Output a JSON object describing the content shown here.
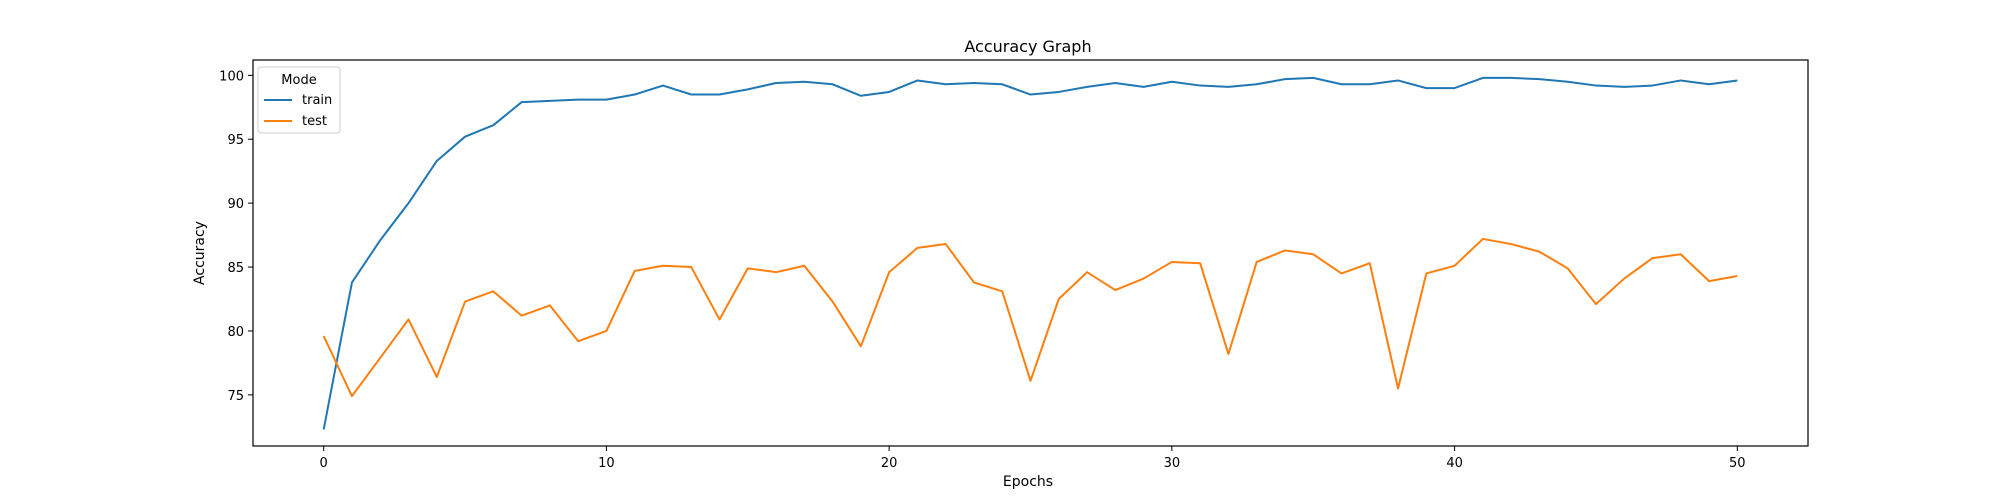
{
  "chart_data": {
    "type": "line",
    "title": "Accuracy Graph",
    "xlabel": "Epochs",
    "ylabel": "Accuracy",
    "xlim": [
      -2.5,
      52.5
    ],
    "ylim": [
      71,
      101.2
    ],
    "xticks": [
      0,
      10,
      20,
      30,
      40,
      50
    ],
    "yticks": [
      75,
      80,
      85,
      90,
      95,
      100
    ],
    "grid": false,
    "legend": {
      "title": "Mode",
      "placement": "top-left"
    },
    "x": [
      0,
      1,
      2,
      3,
      4,
      5,
      6,
      7,
      8,
      9,
      10,
      11,
      12,
      13,
      14,
      15,
      16,
      17,
      18,
      19,
      20,
      21,
      22,
      23,
      24,
      25,
      26,
      27,
      28,
      29,
      30,
      31,
      32,
      33,
      34,
      35,
      36,
      37,
      38,
      39,
      40,
      41,
      42,
      43,
      44,
      45,
      46,
      47,
      48,
      49,
      50
    ],
    "series": [
      {
        "name": "train",
        "color": "#1f77b4",
        "values": [
          72.3,
          83.8,
          87.1,
          90.0,
          93.3,
          95.2,
          96.1,
          97.9,
          98.0,
          98.1,
          98.1,
          98.5,
          99.2,
          98.5,
          98.5,
          98.9,
          99.4,
          99.5,
          99.3,
          98.4,
          98.7,
          99.6,
          99.3,
          99.4,
          99.3,
          98.5,
          98.7,
          99.1,
          99.4,
          99.1,
          99.5,
          99.2,
          99.1,
          99.3,
          99.7,
          99.8,
          99.3,
          99.3,
          99.6,
          99.0,
          99.0,
          99.8,
          99.8,
          99.7,
          99.5,
          99.2,
          99.1,
          99.2,
          99.6,
          99.3,
          99.6
        ]
      },
      {
        "name": "test",
        "color": "#ff7f0e",
        "values": [
          79.6,
          74.9,
          77.9,
          80.9,
          76.4,
          82.3,
          83.1,
          81.2,
          82.0,
          79.2,
          80.0,
          84.7,
          85.1,
          85.0,
          80.9,
          84.9,
          84.6,
          85.1,
          82.3,
          78.8,
          84.6,
          86.5,
          86.8,
          83.8,
          83.1,
          76.1,
          82.5,
          84.6,
          83.2,
          84.1,
          85.4,
          85.3,
          78.2,
          85.4,
          86.3,
          86.0,
          84.5,
          85.3,
          75.5,
          84.5,
          85.1,
          87.2,
          86.8,
          86.2,
          84.9,
          82.1,
          84.1,
          85.7,
          86.0,
          83.9,
          84.3
        ]
      }
    ]
  }
}
